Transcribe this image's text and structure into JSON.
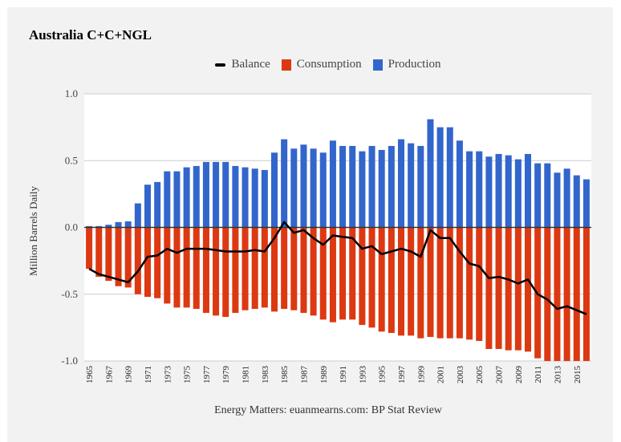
{
  "chart_data": {
    "type": "bar",
    "title": "Australia C+C+NGL",
    "xlabel": "",
    "ylabel": "Million Barrels Daily",
    "ylim": [
      -1.0,
      1.0
    ],
    "yticks": [
      "1.0",
      "0.5",
      "0.0",
      "-0.5",
      "-1.0"
    ],
    "ytick_values": [
      1.0,
      0.5,
      0.0,
      -0.5,
      -1.0
    ],
    "grid": true,
    "legend_position": "top",
    "source": "Energy Matters: euanmearns.com: BP Stat Review",
    "categories": [
      "1965",
      "1966",
      "1967",
      "1968",
      "1969",
      "1970",
      "1971",
      "1972",
      "1973",
      "1974",
      "1975",
      "1976",
      "1977",
      "1978",
      "1979",
      "1980",
      "1981",
      "1982",
      "1983",
      "1984",
      "1985",
      "1986",
      "1987",
      "1988",
      "1989",
      "1990",
      "1991",
      "1992",
      "1993",
      "1994",
      "1995",
      "1996",
      "1997",
      "1998",
      "1999",
      "2000",
      "2001",
      "2002",
      "2003",
      "2004",
      "2005",
      "2006",
      "2007",
      "2008",
      "2009",
      "2010",
      "2011",
      "2012",
      "2013",
      "2014",
      "2015",
      "2016"
    ],
    "xtick_labels": [
      "1965",
      "1967",
      "1969",
      "1971",
      "1973",
      "1975",
      "1977",
      "1979",
      "1981",
      "1983",
      "1985",
      "1987",
      "1989",
      "1991",
      "1993",
      "1995",
      "1997",
      "1999",
      "2001",
      "2003",
      "2005",
      "2007",
      "2009",
      "2011",
      "2013",
      "2015"
    ],
    "series": [
      {
        "name": "Balance",
        "type": "line",
        "color": "#000000",
        "values": [
          -0.31,
          -0.35,
          -0.37,
          -0.39,
          -0.41,
          -0.33,
          -0.22,
          -0.21,
          -0.16,
          -0.19,
          -0.16,
          -0.16,
          -0.16,
          -0.17,
          -0.18,
          -0.18,
          -0.18,
          -0.17,
          -0.18,
          -0.08,
          0.04,
          -0.04,
          -0.02,
          -0.08,
          -0.13,
          -0.06,
          -0.07,
          -0.08,
          -0.16,
          -0.14,
          -0.2,
          -0.18,
          -0.16,
          -0.18,
          -0.22,
          -0.02,
          -0.08,
          -0.08,
          -0.18,
          -0.27,
          -0.29,
          -0.38,
          -0.37,
          -0.39,
          -0.42,
          -0.39,
          -0.5,
          -0.54,
          -0.61,
          -0.59,
          -0.62,
          -0.65
        ]
      },
      {
        "name": "Consumption",
        "type": "bar",
        "color": "#dc3912",
        "values": [
          -0.31,
          -0.37,
          -0.4,
          -0.44,
          -0.45,
          -0.5,
          -0.52,
          -0.53,
          -0.57,
          -0.6,
          -0.6,
          -0.61,
          -0.64,
          -0.66,
          -0.67,
          -0.64,
          -0.62,
          -0.61,
          -0.6,
          -0.63,
          -0.61,
          -0.62,
          -0.64,
          -0.66,
          -0.69,
          -0.71,
          -0.69,
          -0.69,
          -0.73,
          -0.75,
          -0.78,
          -0.79,
          -0.81,
          -0.81,
          -0.83,
          -0.82,
          -0.83,
          -0.83,
          -0.83,
          -0.84,
          -0.85,
          -0.91,
          -0.91,
          -0.92,
          -0.92,
          -0.93,
          -0.98,
          -1.02,
          -1.03,
          -1.04,
          -1.03,
          -1.05
        ]
      },
      {
        "name": "Production",
        "type": "bar",
        "color": "#3366cc",
        "values": [
          0.01,
          0.01,
          0.02,
          0.04,
          0.045,
          0.18,
          0.32,
          0.34,
          0.42,
          0.42,
          0.45,
          0.46,
          0.49,
          0.49,
          0.49,
          0.46,
          0.45,
          0.44,
          0.43,
          0.56,
          0.66,
          0.59,
          0.62,
          0.59,
          0.56,
          0.65,
          0.61,
          0.61,
          0.57,
          0.61,
          0.58,
          0.61,
          0.66,
          0.63,
          0.61,
          0.81,
          0.75,
          0.75,
          0.65,
          0.57,
          0.57,
          0.53,
          0.55,
          0.54,
          0.51,
          0.55,
          0.48,
          0.48,
          0.41,
          0.44,
          0.39,
          0.36
        ]
      }
    ]
  }
}
